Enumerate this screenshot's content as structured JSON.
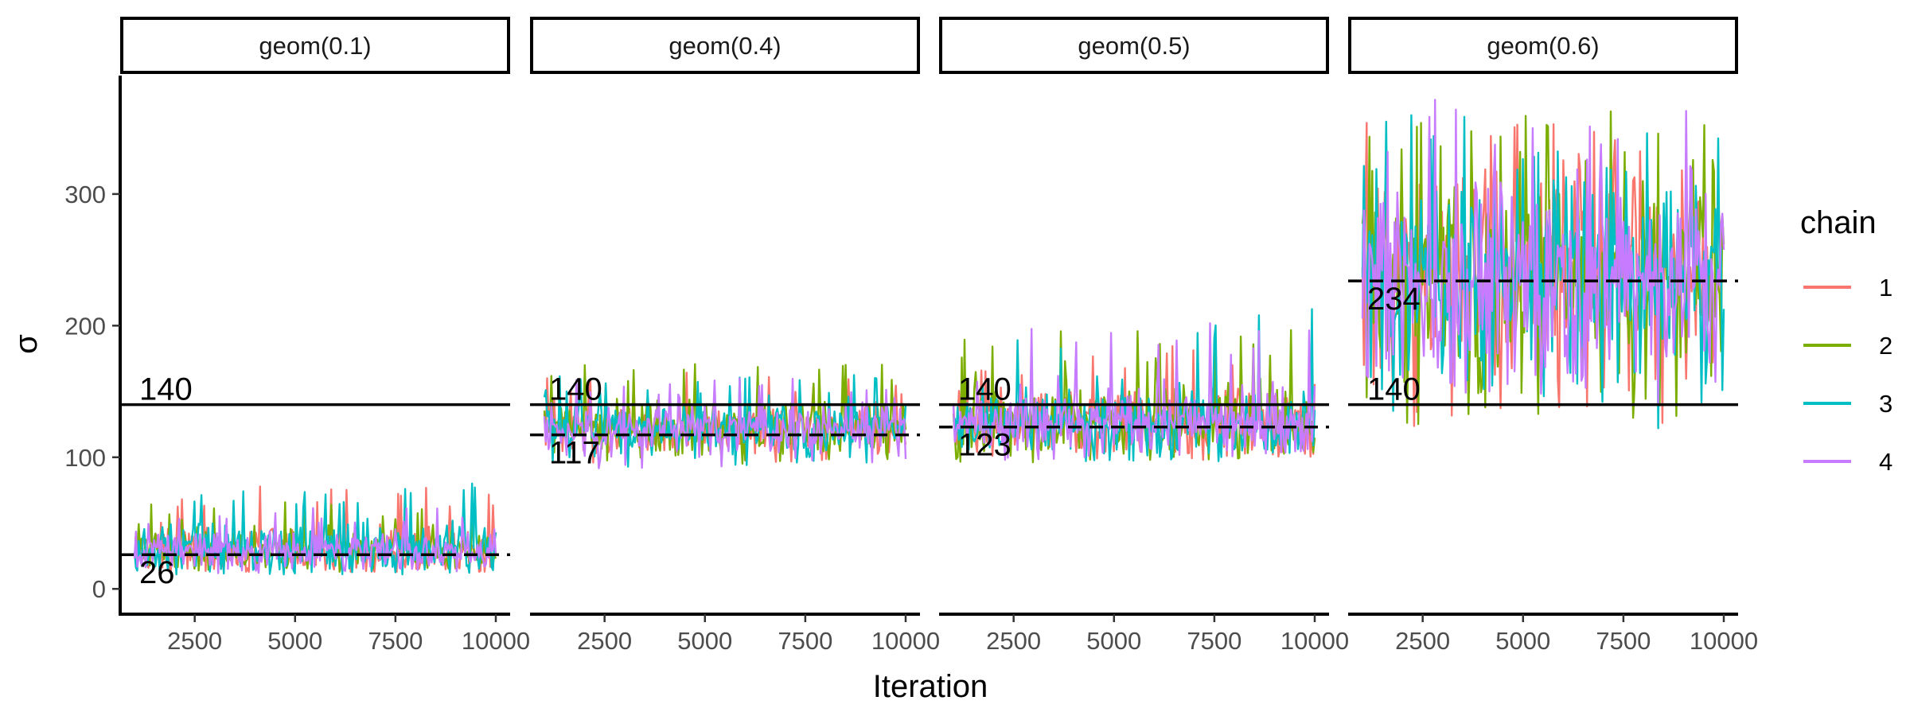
{
  "chart_data": {
    "type": "line",
    "xlabel": "Iteration",
    "ylabel": "σ",
    "xlim": [
      1000,
      10000
    ],
    "ylim": [
      -18,
      390
    ],
    "x_ticks": [
      2500,
      5000,
      7500,
      10000
    ],
    "y_ticks": [
      0,
      100,
      200,
      300
    ],
    "legend": {
      "title": "chain",
      "position": "right",
      "entries": [
        {
          "label": "1",
          "color": "#F8766D"
        },
        {
          "label": "2",
          "color": "#7CAE00"
        },
        {
          "label": "3",
          "color": "#00BFC4"
        },
        {
          "label": "4",
          "color": "#C77CFF"
        }
      ]
    },
    "panels": [
      {
        "strip": "geom(0.1)",
        "solid_line": {
          "value": 140,
          "label": "140"
        },
        "dashed_line": {
          "value": 26,
          "label": "26"
        },
        "series": [
          {
            "name": "1",
            "center": 30,
            "spread": 9,
            "min": 13,
            "max": 80
          },
          {
            "name": "2",
            "center": 29,
            "spread": 8,
            "min": 12,
            "max": 66
          },
          {
            "name": "3",
            "center": 31,
            "spread": 10,
            "min": 11,
            "max": 81
          },
          {
            "name": "4",
            "center": 29,
            "spread": 8,
            "min": 12,
            "max": 62
          }
        ]
      },
      {
        "strip": "geom(0.4)",
        "solid_line": {
          "value": 140,
          "label": "140"
        },
        "dashed_line": {
          "value": 117,
          "label": "117"
        },
        "series": [
          {
            "name": "1",
            "center": 123,
            "spread": 10,
            "min": 96,
            "max": 165
          },
          {
            "name": "2",
            "center": 123,
            "spread": 10,
            "min": 95,
            "max": 172
          },
          {
            "name": "3",
            "center": 123,
            "spread": 10,
            "min": 92,
            "max": 165
          },
          {
            "name": "4",
            "center": 122,
            "spread": 9,
            "min": 88,
            "max": 160
          }
        ]
      },
      {
        "strip": "geom(0.5)",
        "solid_line": {
          "value": 140,
          "label": "140"
        },
        "dashed_line": {
          "value": 123,
          "label": "123"
        },
        "series": [
          {
            "name": "1",
            "center": 128,
            "spread": 13,
            "min": 98,
            "max": 185
          },
          {
            "name": "2",
            "center": 128,
            "spread": 14,
            "min": 96,
            "max": 201
          },
          {
            "name": "3",
            "center": 128,
            "spread": 14,
            "min": 97,
            "max": 214
          },
          {
            "name": "4",
            "center": 127,
            "spread": 13,
            "min": 98,
            "max": 205
          }
        ]
      },
      {
        "strip": "geom(0.6)",
        "solid_line": {
          "value": 140,
          "label": "140"
        },
        "dashed_line": {
          "value": 234,
          "label": "234"
        },
        "series": [
          {
            "name": "1",
            "center": 240,
            "spread": 40,
            "min": 123,
            "max": 357
          },
          {
            "name": "2",
            "center": 240,
            "spread": 40,
            "min": 117,
            "max": 367
          },
          {
            "name": "3",
            "center": 240,
            "spread": 40,
            "min": 117,
            "max": 360
          },
          {
            "name": "4",
            "center": 238,
            "spread": 38,
            "min": 140,
            "max": 373
          }
        ]
      }
    ]
  }
}
